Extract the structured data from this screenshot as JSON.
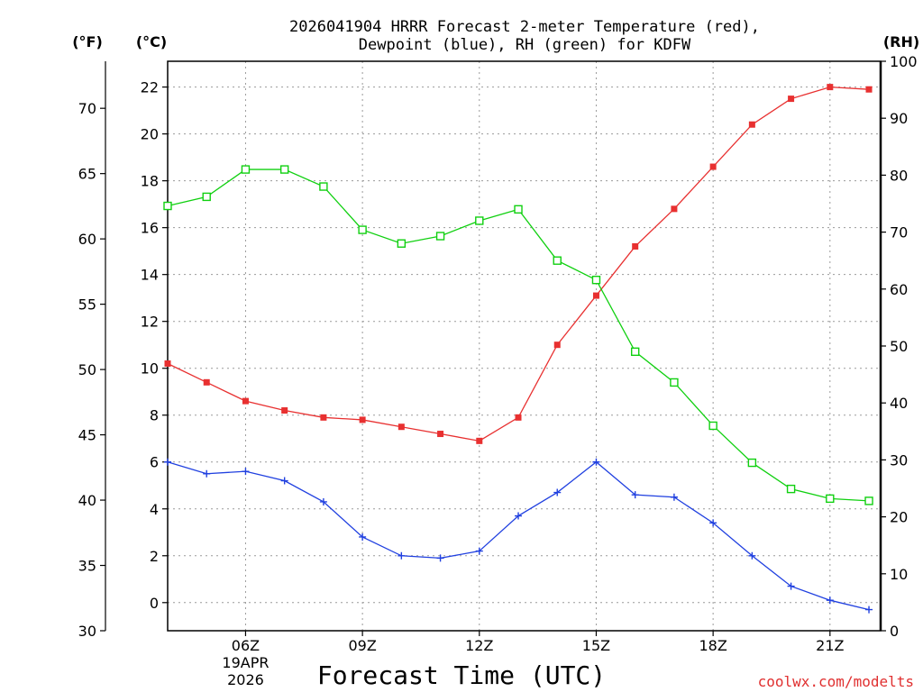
{
  "chart_data": {
    "type": "line",
    "title_lines": [
      "2026041904 HRRR Forecast 2-meter Temperature (red),",
      "Dewpoint (blue), RH (green) for KDFW"
    ],
    "xlabel": "Forecast Time (UTC)",
    "credit": "coolwx.com/modelts",
    "axes": {
      "fahrenheit": {
        "unit_label": "(°F)",
        "range": [
          30,
          73.6
        ],
        "ticks": [
          "30",
          "35",
          "40",
          "45",
          "50",
          "55",
          "60",
          "65",
          "70"
        ]
      },
      "celsius": {
        "unit_label": "(°C)",
        "range": [
          -1.2,
          23.1
        ],
        "ticks": [
          "0",
          "2",
          "4",
          "6",
          "8",
          "10",
          "12",
          "14",
          "16",
          "18",
          "20",
          "22"
        ]
      },
      "rh": {
        "unit_label": "(RH)",
        "range": [
          0,
          100
        ],
        "ticks": [
          "0",
          "10",
          "20",
          "30",
          "40",
          "50",
          "60",
          "70",
          "80",
          "90",
          "100"
        ]
      }
    },
    "x_range": [
      4,
      22.3
    ],
    "x_ticks": [
      {
        "hour": 6,
        "label": "06Z",
        "sub1": "19APR",
        "sub2": "2026"
      },
      {
        "hour": 9,
        "label": "09Z"
      },
      {
        "hour": 12,
        "label": "12Z"
      },
      {
        "hour": 15,
        "label": "15Z"
      },
      {
        "hour": 18,
        "label": "18Z"
      },
      {
        "hour": 21,
        "label": "21Z"
      }
    ],
    "hours": [
      4,
      5,
      6,
      7,
      8,
      9,
      10,
      11,
      12,
      13,
      14,
      15,
      16,
      17,
      18,
      19,
      20,
      21,
      22
    ],
    "series": [
      {
        "name": "Temperature",
        "axis": "celsius",
        "color": "#e83030",
        "marker": "square-filled",
        "values": [
          10.2,
          9.4,
          8.6,
          8.2,
          7.9,
          7.8,
          7.5,
          7.2,
          6.9,
          7.9,
          11.0,
          13.1,
          15.2,
          16.8,
          18.6,
          20.4,
          21.5,
          22.0,
          21.9
        ]
      },
      {
        "name": "Dewpoint",
        "axis": "celsius",
        "color": "#2040e0",
        "marker": "plus",
        "values": [
          6.0,
          5.5,
          5.6,
          5.2,
          4.3,
          2.8,
          2.0,
          1.9,
          2.2,
          3.7,
          4.7,
          6.0,
          4.6,
          4.5,
          3.4,
          2.0,
          0.7,
          0.1,
          -0.3
        ]
      },
      {
        "name": "RH",
        "axis": "rh",
        "color": "#10d010",
        "marker": "square-open",
        "values": [
          74.6,
          76.2,
          81.0,
          81.0,
          78.0,
          70.4,
          68.0,
          69.3,
          72.0,
          74.0,
          65.0,
          61.6,
          49.0,
          43.6,
          36.0,
          29.5,
          24.9,
          23.2,
          22.8
        ]
      }
    ]
  }
}
